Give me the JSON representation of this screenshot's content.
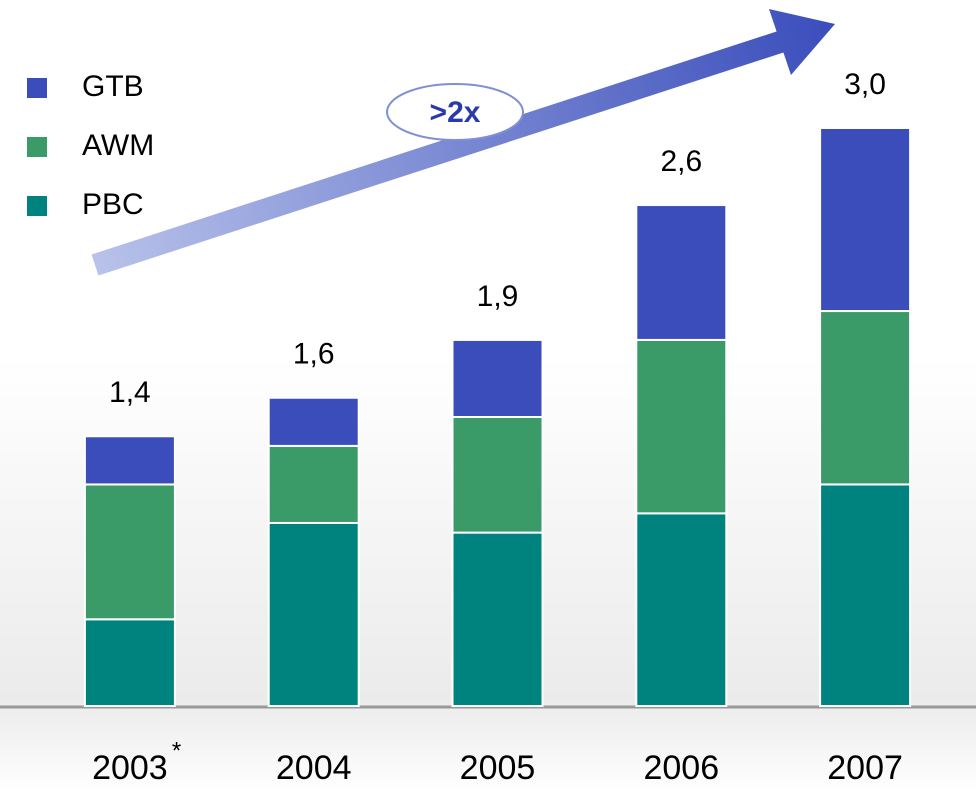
{
  "chart_data": {
    "type": "stacked_bar",
    "categories": [
      "2003",
      "2004",
      "2005",
      "2006",
      "2007"
    ],
    "category_footnotes": [
      "*",
      null,
      null,
      null,
      null
    ],
    "series": [
      {
        "name": "PBC",
        "color": "#00827f",
        "values": [
          0.45,
          0.95,
          0.9,
          1.0,
          1.15
        ]
      },
      {
        "name": "AWM",
        "color": "#3a9a68",
        "values": [
          0.7,
          0.4,
          0.6,
          0.9,
          0.9
        ]
      },
      {
        "name": "GTB",
        "color": "#3a4dbb",
        "values": [
          0.25,
          0.25,
          0.4,
          0.7,
          0.95
        ]
      }
    ],
    "totals": [
      1.4,
      1.6,
      1.9,
      2.6,
      3.0
    ],
    "total_labels": [
      "1,4",
      "1,6",
      "1,9",
      "2,6",
      "3,0"
    ],
    "annotation": ">2x"
  }
}
